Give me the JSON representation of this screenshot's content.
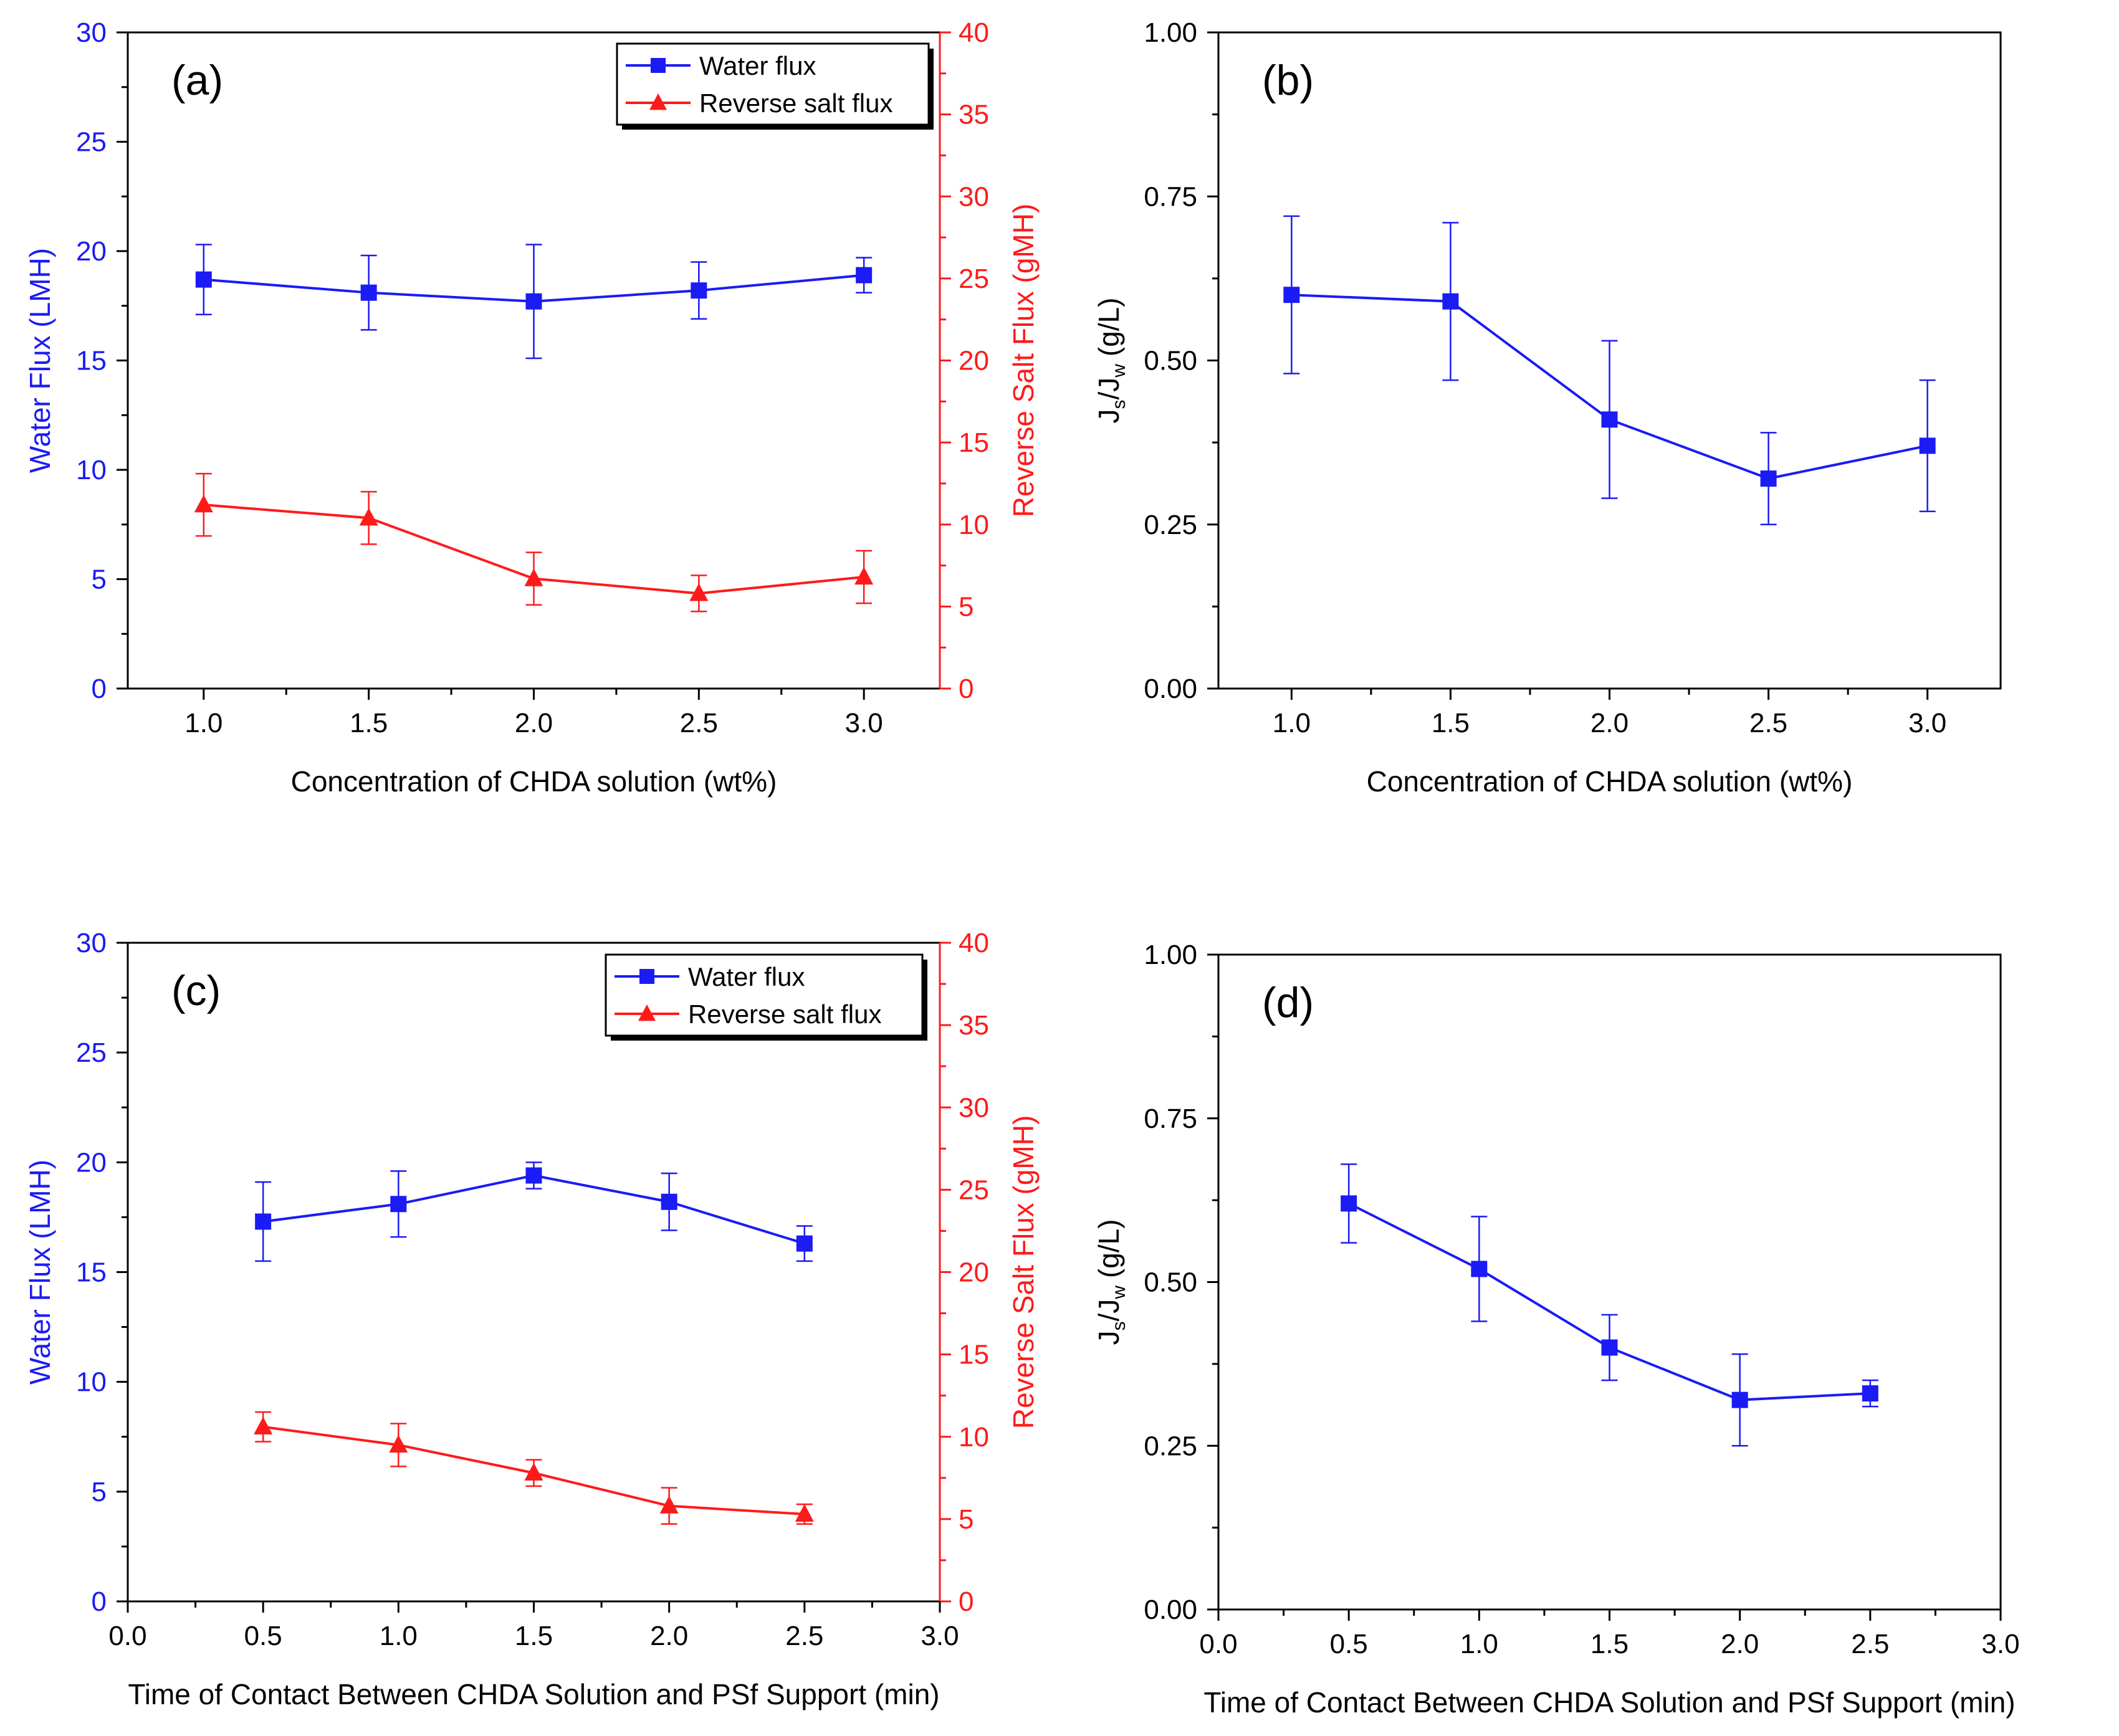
{
  "colors": {
    "water": "#1b1bf5",
    "salt": "#ff1a1a",
    "axis": "#000000"
  },
  "chart_data": [
    {
      "id": "a",
      "type": "line",
      "panel_label": "(a)",
      "xlabel": "Concentration of CHDA solution (wt%)",
      "ylabel_left": "Water Flux (LMH)",
      "ylabel_right": "Reverse Salt Flux (gMH)",
      "xlim": [
        0.77,
        3.23
      ],
      "ylim_left": [
        0,
        30
      ],
      "ylim_right": [
        0,
        40
      ],
      "x_ticks": [
        "1.0",
        "1.5",
        "2.0",
        "2.5",
        "3.0"
      ],
      "y_ticks_left": [
        "0",
        "5",
        "10",
        "15",
        "20",
        "25",
        "30"
      ],
      "y_ticks_right": [
        "0",
        "5",
        "10",
        "15",
        "20",
        "25",
        "30",
        "35",
        "40"
      ],
      "legend": [
        "Water flux",
        "Reverse salt flux"
      ],
      "series": [
        {
          "name": "Water flux",
          "axis": "left",
          "marker": "square",
          "color": "#1b1bf5",
          "x": [
            1.0,
            1.5,
            2.0,
            2.5,
            3.0
          ],
          "y": [
            18.7,
            18.1,
            17.7,
            18.2,
            18.9
          ],
          "err": [
            1.6,
            1.7,
            2.6,
            1.3,
            0.8
          ]
        },
        {
          "name": "Reverse salt flux",
          "axis": "right",
          "marker": "triangle",
          "color": "#ff1a1a",
          "x": [
            1.0,
            1.5,
            2.0,
            2.5,
            3.0
          ],
          "y": [
            11.2,
            10.4,
            6.7,
            5.8,
            6.8
          ],
          "err": [
            1.9,
            1.6,
            1.6,
            1.1,
            1.6
          ]
        }
      ]
    },
    {
      "id": "b",
      "type": "line",
      "panel_label": "(b)",
      "xlabel": "Concentration of CHDA solution (wt%)",
      "ylabel_left": "Js/Jw (g/L)",
      "ylabel_main": "J",
      "ylabel_sub1": "s",
      "ylabel_mid": "/J",
      "ylabel_sub2": "w",
      "ylabel_unit": "(g/L)",
      "xlim": [
        0.77,
        3.23
      ],
      "ylim_left": [
        0,
        1.0
      ],
      "x_ticks": [
        "1.0",
        "1.5",
        "2.0",
        "2.5",
        "3.0"
      ],
      "y_ticks_left": [
        "0.00",
        "0.25",
        "0.50",
        "0.75",
        "1.00"
      ],
      "series": [
        {
          "name": "Js/Jw",
          "axis": "left",
          "marker": "square",
          "color": "#1b1bf5",
          "x": [
            1.0,
            1.5,
            2.0,
            2.5,
            3.0
          ],
          "y": [
            0.6,
            0.59,
            0.41,
            0.32,
            0.37
          ],
          "err": [
            0.12,
            0.12,
            0.12,
            0.07,
            0.1
          ]
        }
      ]
    },
    {
      "id": "c",
      "type": "line",
      "panel_label": "(c)",
      "xlabel": "Time of Contact Between CHDA Solution and PSf Support (min)",
      "ylabel_left": "Water Flux (LMH)",
      "ylabel_right": "Reverse Salt Flux (gMH)",
      "xlim": [
        0,
        3.0
      ],
      "ylim_left": [
        0,
        30
      ],
      "ylim_right": [
        0,
        40
      ],
      "x_ticks": [
        "0.0",
        "0.5",
        "1.0",
        "1.5",
        "2.0",
        "2.5",
        "3.0"
      ],
      "y_ticks_left": [
        "0",
        "5",
        "10",
        "15",
        "20",
        "25",
        "30"
      ],
      "y_ticks_right": [
        "0",
        "5",
        "10",
        "15",
        "20",
        "25",
        "30",
        "35",
        "40"
      ],
      "legend": [
        "Water flux",
        "Reverse salt flux"
      ],
      "series": [
        {
          "name": "Water flux",
          "axis": "left",
          "marker": "square",
          "color": "#1b1bf5",
          "x": [
            0.5,
            1.0,
            1.5,
            2.0,
            2.5
          ],
          "y": [
            17.3,
            18.1,
            19.4,
            18.2,
            16.3
          ],
          "err": [
            1.8,
            1.5,
            0.6,
            1.3,
            0.8
          ]
        },
        {
          "name": "Reverse salt flux",
          "axis": "right",
          "marker": "triangle",
          "color": "#ff1a1a",
          "x": [
            0.5,
            1.0,
            1.5,
            2.0,
            2.5
          ],
          "y": [
            10.6,
            9.5,
            7.8,
            5.8,
            5.3
          ],
          "err": [
            0.9,
            1.3,
            0.8,
            1.1,
            0.6
          ]
        }
      ]
    },
    {
      "id": "d",
      "type": "line",
      "panel_label": "(d)",
      "xlabel": "Time of Contact Between CHDA Solution and PSf Support (min)",
      "ylabel_left": "Js/Jw (g/L)",
      "ylabel_main": "J",
      "ylabel_sub1": "s",
      "ylabel_mid": "/J",
      "ylabel_sub2": "w",
      "ylabel_unit": "(g/L)",
      "xlim": [
        0,
        3.0
      ],
      "ylim_left": [
        0,
        1.0
      ],
      "x_ticks": [
        "0.0",
        "0.5",
        "1.0",
        "1.5",
        "2.0",
        "2.5",
        "3.0"
      ],
      "y_ticks_left": [
        "0.00",
        "0.25",
        "0.50",
        "0.75",
        "1.00"
      ],
      "series": [
        {
          "name": "Js/Jw",
          "axis": "left",
          "marker": "square",
          "color": "#1b1bf5",
          "x": [
            0.5,
            1.0,
            1.5,
            2.0,
            2.5
          ],
          "y": [
            0.62,
            0.52,
            0.4,
            0.32,
            0.33
          ],
          "err": [
            0.06,
            0.08,
            0.05,
            0.07,
            0.02
          ]
        }
      ]
    }
  ]
}
